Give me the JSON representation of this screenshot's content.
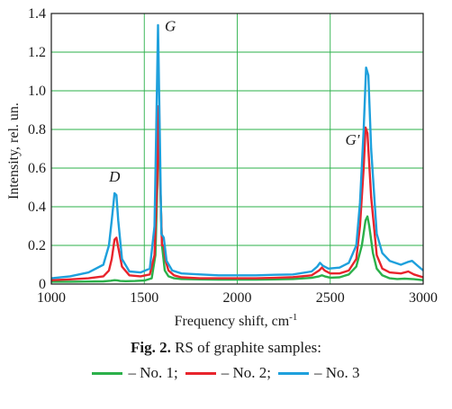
{
  "chart_data": {
    "type": "line",
    "xlabel": "Frequency shift, cm",
    "xlabel_sup": "-1",
    "ylabel": "Intensity, rel. un.",
    "xlim": [
      1000,
      3000
    ],
    "ylim": [
      0,
      1.4
    ],
    "x_ticks": [
      1000,
      1500,
      2000,
      2500,
      3000
    ],
    "y_ticks": [
      0,
      0.2,
      0.4,
      0.6,
      0.8,
      1.0,
      1.2,
      1.4
    ],
    "y_tick_labels": [
      "0",
      "0.2",
      "0.4",
      "0.6",
      "0.8",
      "1.0",
      "1.2",
      "1.4"
    ],
    "grid": true,
    "annotations": [
      {
        "text": "D",
        "x": 1340,
        "y": 0.53
      },
      {
        "text": "G",
        "x": 1640,
        "y": 1.31
      },
      {
        "text": "G′",
        "x": 2620,
        "y": 0.72
      }
    ],
    "series": [
      {
        "name": "No. 1",
        "color": "#2bb04a",
        "x": [
          1000,
          1100,
          1200,
          1280,
          1320,
          1340,
          1355,
          1370,
          1400,
          1450,
          1500,
          1540,
          1560,
          1570,
          1578,
          1585,
          1595,
          1610,
          1630,
          1660,
          1700,
          1800,
          1900,
          2000,
          2100,
          2200,
          2300,
          2400,
          2440,
          2455,
          2470,
          2500,
          2550,
          2600,
          2640,
          2670,
          2690,
          2700,
          2710,
          2730,
          2750,
          2780,
          2820,
          2860,
          2900,
          2950,
          3000
        ],
        "y": [
          0.012,
          0.012,
          0.013,
          0.014,
          0.017,
          0.02,
          0.019,
          0.016,
          0.015,
          0.016,
          0.018,
          0.03,
          0.15,
          0.5,
          0.92,
          0.55,
          0.2,
          0.07,
          0.04,
          0.03,
          0.026,
          0.024,
          0.023,
          0.023,
          0.023,
          0.024,
          0.026,
          0.032,
          0.04,
          0.045,
          0.04,
          0.033,
          0.035,
          0.05,
          0.09,
          0.2,
          0.33,
          0.35,
          0.3,
          0.16,
          0.08,
          0.045,
          0.03,
          0.026,
          0.028,
          0.025,
          0.02
        ]
      },
      {
        "name": "No. 2",
        "color": "#e8242c",
        "x": [
          1000,
          1100,
          1200,
          1280,
          1310,
          1325,
          1340,
          1350,
          1360,
          1380,
          1420,
          1480,
          1530,
          1555,
          1568,
          1576,
          1585,
          1595,
          1605,
          1615,
          1630,
          1660,
          1700,
          1800,
          1900,
          2000,
          2100,
          2200,
          2300,
          2400,
          2440,
          2455,
          2470,
          2500,
          2550,
          2600,
          2640,
          2660,
          2680,
          2690,
          2700,
          2720,
          2750,
          2780,
          2820,
          2880,
          2920,
          2950,
          3000
        ],
        "y": [
          0.02,
          0.024,
          0.03,
          0.04,
          0.07,
          0.13,
          0.23,
          0.24,
          0.19,
          0.09,
          0.045,
          0.04,
          0.05,
          0.15,
          0.5,
          0.92,
          0.55,
          0.2,
          0.2,
          0.12,
          0.07,
          0.045,
          0.035,
          0.03,
          0.03,
          0.03,
          0.03,
          0.032,
          0.036,
          0.045,
          0.07,
          0.085,
          0.07,
          0.055,
          0.055,
          0.07,
          0.13,
          0.3,
          0.6,
          0.81,
          0.78,
          0.45,
          0.15,
          0.08,
          0.06,
          0.055,
          0.065,
          0.05,
          0.035
        ]
      },
      {
        "name": "No. 3",
        "color": "#1ea0dc",
        "x": [
          1000,
          1100,
          1200,
          1280,
          1310,
          1325,
          1340,
          1350,
          1360,
          1380,
          1420,
          1480,
          1530,
          1555,
          1566,
          1574,
          1583,
          1592,
          1605,
          1620,
          1650,
          1700,
          1800,
          1900,
          2000,
          2100,
          2200,
          2300,
          2400,
          2430,
          2445,
          2460,
          2490,
          2550,
          2600,
          2640,
          2660,
          2680,
          2693,
          2705,
          2720,
          2750,
          2780,
          2820,
          2880,
          2920,
          2940,
          2970,
          3000
        ],
        "y": [
          0.03,
          0.04,
          0.06,
          0.1,
          0.2,
          0.33,
          0.47,
          0.46,
          0.33,
          0.13,
          0.065,
          0.06,
          0.08,
          0.3,
          0.9,
          1.34,
          0.8,
          0.26,
          0.24,
          0.12,
          0.07,
          0.055,
          0.05,
          0.045,
          0.045,
          0.045,
          0.048,
          0.05,
          0.065,
          0.09,
          0.11,
          0.095,
          0.08,
          0.085,
          0.11,
          0.2,
          0.42,
          0.8,
          1.12,
          1.08,
          0.7,
          0.26,
          0.16,
          0.12,
          0.1,
          0.115,
          0.12,
          0.095,
          0.07
        ]
      }
    ]
  },
  "caption": {
    "fig_label": "Fig. 2.",
    "fig_text": "RS of graphite samples:"
  },
  "legend": [
    {
      "text": "– No. 1;",
      "color": "#2bb04a"
    },
    {
      "text": "– No. 2;",
      "color": "#e8242c"
    },
    {
      "text": "– No. 3",
      "color": "#1ea0dc"
    }
  ]
}
